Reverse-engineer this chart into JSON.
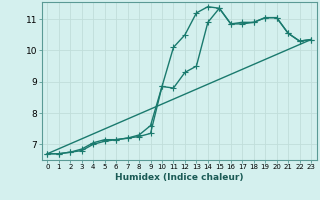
{
  "xlabel": "Humidex (Indice chaleur)",
  "bg_color": "#d4f0ee",
  "line_color": "#1a7a6e",
  "grid_color": "#c0deda",
  "xlim": [
    -0.5,
    23.5
  ],
  "ylim": [
    6.5,
    11.55
  ],
  "yticks": [
    7,
    8,
    9,
    10,
    11
  ],
  "xticks": [
    0,
    1,
    2,
    3,
    4,
    5,
    6,
    7,
    8,
    9,
    10,
    11,
    12,
    13,
    14,
    15,
    16,
    17,
    18,
    19,
    20,
    21,
    22,
    23
  ],
  "line1_x": [
    0,
    1,
    2,
    3,
    4,
    5,
    6,
    7,
    8,
    9,
    10,
    11,
    12,
    13,
    14,
    15,
    16,
    17,
    18,
    19,
    20,
    21,
    22,
    23
  ],
  "line1_y": [
    6.7,
    6.7,
    6.75,
    6.8,
    7.0,
    7.1,
    7.15,
    7.2,
    7.25,
    7.35,
    8.85,
    10.1,
    10.5,
    11.2,
    11.4,
    11.35,
    10.85,
    10.9,
    10.9,
    11.05,
    11.05,
    10.55,
    10.3,
    10.35
  ],
  "line2_x": [
    0,
    1,
    2,
    3,
    4,
    5,
    6,
    7,
    8,
    9,
    10,
    11,
    12,
    13,
    14,
    15,
    16,
    17,
    18,
    19,
    20,
    21,
    22,
    23
  ],
  "line2_y": [
    6.7,
    6.7,
    6.75,
    6.85,
    7.05,
    7.15,
    7.15,
    7.2,
    7.3,
    7.6,
    8.85,
    8.8,
    9.3,
    9.5,
    10.9,
    11.35,
    10.85,
    10.85,
    10.9,
    11.05,
    11.05,
    10.55,
    10.3,
    10.35
  ],
  "line3_x": [
    0,
    23
  ],
  "line3_y": [
    6.7,
    10.35
  ],
  "marker_size": 2.5,
  "linewidth": 1.0
}
